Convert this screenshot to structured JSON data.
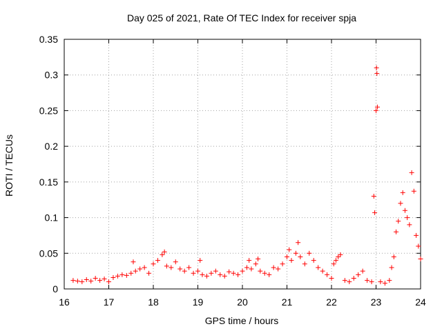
{
  "chart_data": {
    "type": "scatter",
    "title": "Day 025 of 2021, Rate Of TEC Index for receiver spja",
    "xlabel": "GPS time / hours",
    "ylabel": "ROTI / TECUs",
    "xlim": [
      16,
      24
    ],
    "ylim": [
      0,
      0.35
    ],
    "grid": true,
    "marker": "+",
    "xticks": [
      16,
      17,
      18,
      19,
      20,
      21,
      22,
      23,
      24
    ],
    "xtick_labels": [
      "16",
      "17",
      "18",
      "19",
      "20",
      "21",
      "22",
      "23",
      "24"
    ],
    "yticks": [
      0,
      0.05,
      0.1,
      0.15,
      0.2,
      0.25,
      0.3,
      0.35
    ],
    "ytick_labels": [
      "0",
      "0.05",
      "0.1",
      "0.15",
      "0.2",
      "0.25",
      "0.3",
      "0.35"
    ],
    "series": [
      {
        "name": "ROTI",
        "color": "#ff0000",
        "x": [
          16.2,
          16.3,
          16.4,
          16.5,
          16.6,
          16.7,
          16.8,
          16.9,
          17.0,
          17.1,
          17.2,
          17.3,
          17.4,
          17.5,
          17.55,
          17.6,
          17.7,
          17.8,
          17.9,
          18.0,
          18.1,
          18.2,
          18.25,
          18.3,
          18.4,
          18.5,
          18.6,
          18.7,
          18.8,
          18.9,
          19.0,
          19.05,
          19.1,
          19.2,
          19.3,
          19.4,
          19.5,
          19.6,
          19.7,
          19.8,
          19.9,
          20.0,
          20.1,
          20.15,
          20.2,
          20.3,
          20.35,
          20.4,
          20.5,
          20.6,
          20.7,
          20.8,
          20.9,
          21.0,
          21.05,
          21.1,
          21.2,
          21.25,
          21.3,
          21.4,
          21.5,
          21.6,
          21.7,
          21.8,
          21.9,
          22.0,
          22.05,
          22.1,
          22.15,
          22.2,
          22.3,
          22.4,
          22.5,
          22.6,
          22.7,
          22.8,
          22.9,
          22.95,
          22.97,
          23.0,
          23.01,
          23.02,
          23.03,
          23.1,
          23.2,
          23.3,
          23.35,
          23.4,
          23.45,
          23.5,
          23.55,
          23.6,
          23.65,
          23.7,
          23.75,
          23.8,
          23.85,
          23.9,
          23.95,
          24.0
        ],
        "y": [
          0.012,
          0.011,
          0.01,
          0.013,
          0.011,
          0.015,
          0.012,
          0.014,
          0.01,
          0.016,
          0.018,
          0.02,
          0.019,
          0.022,
          0.038,
          0.025,
          0.028,
          0.03,
          0.022,
          0.035,
          0.04,
          0.048,
          0.052,
          0.032,
          0.03,
          0.038,
          0.028,
          0.025,
          0.03,
          0.022,
          0.025,
          0.04,
          0.02,
          0.018,
          0.022,
          0.025,
          0.02,
          0.018,
          0.024,
          0.022,
          0.02,
          0.025,
          0.03,
          0.04,
          0.028,
          0.035,
          0.042,
          0.025,
          0.022,
          0.02,
          0.03,
          0.028,
          0.035,
          0.045,
          0.055,
          0.04,
          0.05,
          0.065,
          0.045,
          0.035,
          0.05,
          0.04,
          0.03,
          0.025,
          0.02,
          0.015,
          0.035,
          0.04,
          0.045,
          0.048,
          0.012,
          0.01,
          0.015,
          0.02,
          0.025,
          0.012,
          0.01,
          0.13,
          0.107,
          0.25,
          0.31,
          0.302,
          0.255,
          0.01,
          0.008,
          0.012,
          0.03,
          0.045,
          0.08,
          0.095,
          0.12,
          0.135,
          0.11,
          0.1,
          0.09,
          0.163,
          0.137,
          0.075,
          0.06,
          0.042
        ]
      }
    ]
  }
}
